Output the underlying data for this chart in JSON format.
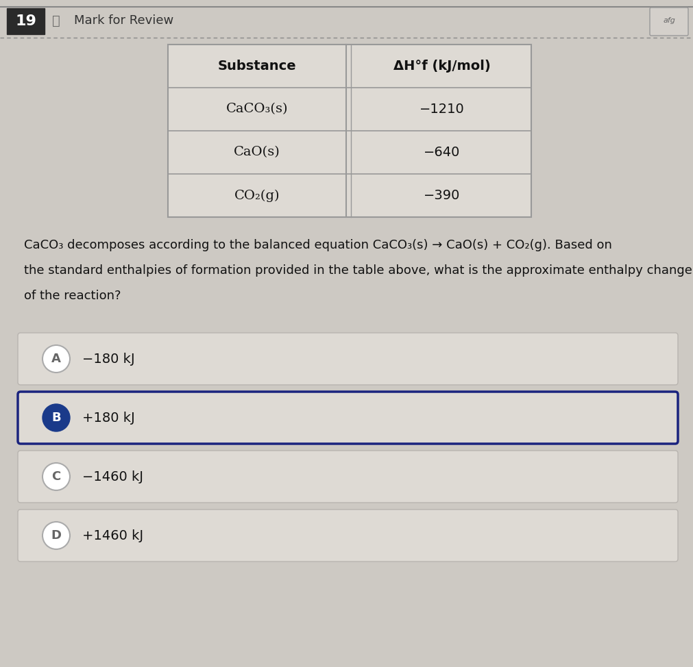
{
  "question_number": "19",
  "header_text": "Mark for Review",
  "page_bg": "#cdc9c3",
  "table_header_col1": "Substance",
  "table_header_col2": "ΔH°f (kJ/mol)",
  "table_rows": [
    [
      "CaCO₃(s)",
      "−1210"
    ],
    [
      "CaO(s)",
      "−640"
    ],
    [
      "CO₂(g)",
      "−390"
    ]
  ],
  "question_text_line1": "CaCO₃ decomposes according to the balanced equation CaCO₃(s) → CaO(s) + CO₂(g). Based on",
  "question_text_line2": "the standard enthalpies of formation provided in the table above, what is the approximate enthalpy change",
  "question_text_line3": "of the reaction?",
  "options": [
    {
      "label": "A",
      "text": "−180 kJ",
      "selected": false
    },
    {
      "label": "B",
      "text": "+180 kJ",
      "selected": true
    },
    {
      "label": "C",
      "text": "−1460 kJ",
      "selected": false
    },
    {
      "label": "D",
      "text": "+1460 kJ",
      "selected": false
    }
  ],
  "option_bg_color": "#dedad4",
  "option_border_unselected": "#b8b4af",
  "option_border_selected": "#1a237e",
  "option_border_selected_lw": 2.5,
  "option_border_unselected_lw": 1.0,
  "option_label_selected_bg": "#1a3a8a",
  "option_label_unselected_bg": "#ffffff",
  "table_bg": "#dedad4",
  "table_border": "#999999"
}
